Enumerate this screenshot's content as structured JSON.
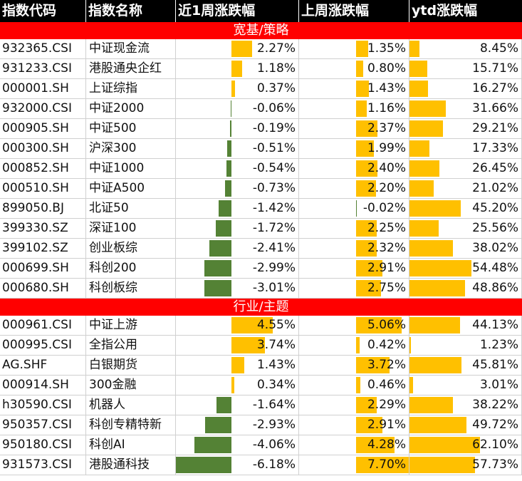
{
  "colors": {
    "header_bg": "#000000",
    "section_bg": "#ff0000",
    "positive_bar": "#ffc000",
    "negative_bar": "#548235"
  },
  "headers": [
    "指数代码",
    "指数名称",
    "近1周涨跌幅",
    "上周涨跌幅",
    "ytd涨跌幅"
  ],
  "sections": [
    {
      "title": "宽基/策略",
      "rows": [
        {
          "code": "932365.CSI",
          "name": "中证现金流",
          "w1": 2.27,
          "lw": 1.35,
          "ytd": 8.45
        },
        {
          "code": "931233.CSI",
          "name": "港股通央企红",
          "w1": 1.18,
          "lw": 0.8,
          "ytd": 15.71
        },
        {
          "code": "000001.SH",
          "name": "上证综指",
          "w1": 0.37,
          "lw": 1.43,
          "ytd": 16.27
        },
        {
          "code": "932000.CSI",
          "name": "中证2000",
          "w1": -0.06,
          "lw": 1.16,
          "ytd": 31.66
        },
        {
          "code": "000905.SH",
          "name": "中证500",
          "w1": -0.19,
          "lw": 2.37,
          "ytd": 29.21
        },
        {
          "code": "000300.SH",
          "name": "沪深300",
          "w1": -0.51,
          "lw": 1.99,
          "ytd": 17.33
        },
        {
          "code": "000852.SH",
          "name": "中证1000",
          "w1": -0.54,
          "lw": 2.4,
          "ytd": 26.45
        },
        {
          "code": "000510.SH",
          "name": "中证A500",
          "w1": -0.73,
          "lw": 2.2,
          "ytd": 21.02
        },
        {
          "code": "899050.BJ",
          "name": "北证50",
          "w1": -1.42,
          "lw": -0.02,
          "ytd": 45.2
        },
        {
          "code": "399330.SZ",
          "name": "深证100",
          "w1": -1.72,
          "lw": 2.25,
          "ytd": 25.56
        },
        {
          "code": "399102.SZ",
          "name": "创业板综",
          "w1": -2.41,
          "lw": 2.32,
          "ytd": 38.02
        },
        {
          "code": "000699.SH",
          "name": "科创200",
          "w1": -2.99,
          "lw": 2.91,
          "ytd": 54.48
        },
        {
          "code": "000680.SH",
          "name": "科创板综",
          "w1": -3.01,
          "lw": 2.75,
          "ytd": 48.86
        }
      ]
    },
    {
      "title": "行业/主题",
      "rows": [
        {
          "code": "000961.CSI",
          "name": "中证上游",
          "w1": 4.55,
          "lw": 5.06,
          "ytd": 44.13
        },
        {
          "code": "000995.CSI",
          "name": "全指公用",
          "w1": 3.74,
          "lw": 0.42,
          "ytd": 1.23
        },
        {
          "code": "AG.SHF",
          "name": "白银期货",
          "w1": 1.43,
          "lw": 3.72,
          "ytd": 45.81
        },
        {
          "code": "000914.SH",
          "name": "300金融",
          "w1": 0.34,
          "lw": 0.46,
          "ytd": 3.01
        },
        {
          "code": "h30590.CSI",
          "name": "机器人",
          "w1": -1.64,
          "lw": 2.29,
          "ytd": 38.22
        },
        {
          "code": "950357.CSI",
          "name": "科创专精特新",
          "w1": -2.93,
          "lw": 2.91,
          "ytd": 49.72
        },
        {
          "code": "950180.CSI",
          "name": "科创AI",
          "w1": -4.06,
          "lw": 4.28,
          "ytd": 62.1
        },
        {
          "code": "931573.CSI",
          "name": "港股通科技",
          "w1": -6.18,
          "lw": 7.7,
          "ytd": 57.73
        }
      ]
    }
  ]
}
